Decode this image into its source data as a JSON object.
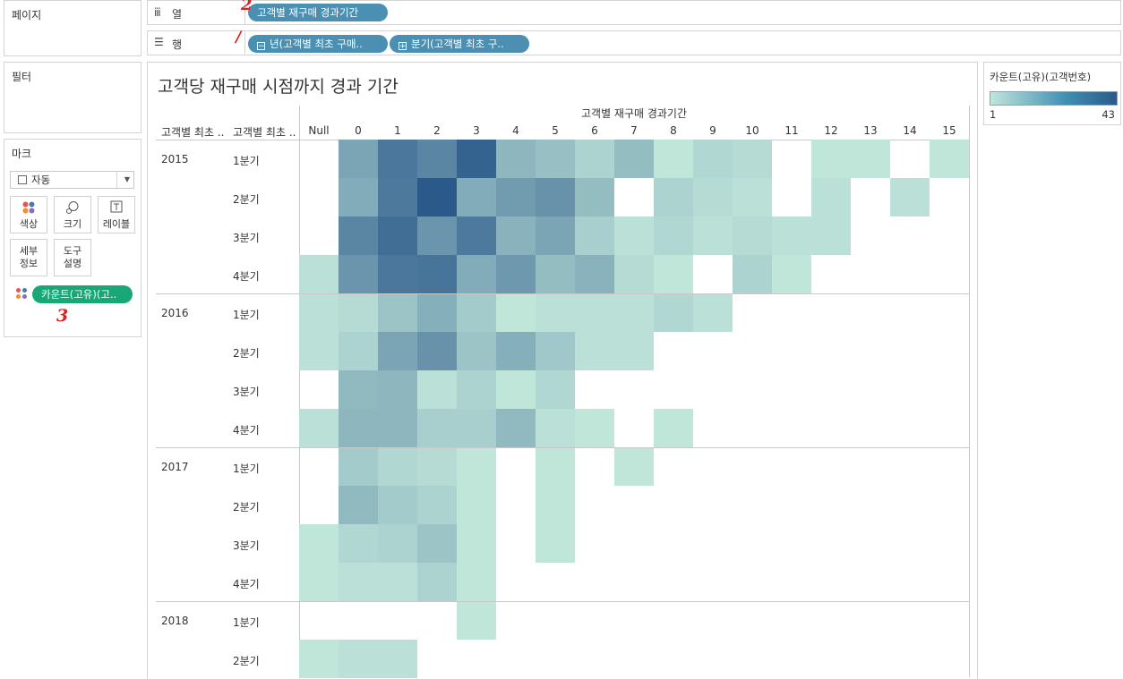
{
  "left_panel": {
    "pages_title": "페이지",
    "filters_title": "필터",
    "marks_title": "마크",
    "mark_type": "자동",
    "buttons": {
      "color": "색상",
      "size": "크기",
      "label": "레이블",
      "detail_1": "세부",
      "detail_2": "정보",
      "tooltip_1": "도구",
      "tooltip_2": "설명"
    },
    "color_pill": "카운트(고유)(고..",
    "annotation_3": "3"
  },
  "shelves": {
    "columns_label": "열",
    "columns_pill": "고객별 재구매 경과기간",
    "annotation_2": "2",
    "rows_label": "행",
    "rows_pill_1": "년(고객별 최초 구매..",
    "rows_pill_2": "분기(고객별 최초 구..",
    "annotation_1": "/"
  },
  "view": {
    "title": "고객당 재구매 시점까지 경과 기간",
    "column_field_header": "고객별 재구매 경과기간",
    "row_header_year": "고객별 최초 ..",
    "row_header_quarter": "고객별 최초 ..",
    "columns": [
      "Null",
      "0",
      "1",
      "2",
      "3",
      "4",
      "5",
      "6",
      "7",
      "8",
      "9",
      "10",
      "11",
      "12",
      "13",
      "14",
      "15"
    ],
    "years": [
      "2015",
      "2016",
      "2017",
      "2018"
    ],
    "rows": [
      {
        "year": "2015",
        "quarter": "1분기"
      },
      {
        "year": "2015",
        "quarter": "2분기"
      },
      {
        "year": "2015",
        "quarter": "3분기"
      },
      {
        "year": "2015",
        "quarter": "4분기"
      },
      {
        "year": "2016",
        "quarter": "1분기"
      },
      {
        "year": "2016",
        "quarter": "2분기"
      },
      {
        "year": "2016",
        "quarter": "3분기"
      },
      {
        "year": "2016",
        "quarter": "4분기"
      },
      {
        "year": "2017",
        "quarter": "1분기"
      },
      {
        "year": "2017",
        "quarter": "2분기"
      },
      {
        "year": "2017",
        "quarter": "3분기"
      },
      {
        "year": "2017",
        "quarter": "4분기"
      },
      {
        "year": "2018",
        "quarter": "1분기"
      },
      {
        "year": "2018",
        "quarter": "2분기"
      }
    ],
    "color_range": [
      "#c0e6da",
      "#2b5a8a"
    ],
    "cells": [
      [
        null,
        18,
        33,
        28,
        40,
        13,
        10,
        5,
        11,
        1,
        4,
        3,
        null,
        1,
        1,
        null,
        1
      ],
      [
        null,
        16,
        32,
        43,
        16,
        21,
        24,
        11,
        null,
        5,
        3,
        2,
        null,
        2,
        null,
        2,
        null
      ],
      [
        null,
        28,
        36,
        23,
        32,
        14,
        18,
        6,
        2,
        4,
        2,
        3,
        2,
        2,
        null,
        null,
        null
      ],
      [
        2,
        23,
        33,
        34,
        16,
        22,
        11,
        14,
        3,
        1,
        null,
        5,
        1,
        null,
        null,
        null,
        null
      ],
      [
        2,
        3,
        9,
        15,
        7,
        1,
        2,
        2,
        2,
        4,
        2,
        null,
        null,
        null,
        null,
        null,
        null
      ],
      [
        2,
        5,
        18,
        24,
        9,
        15,
        8,
        2,
        2,
        null,
        null,
        null,
        null,
        null,
        null,
        null,
        null
      ],
      [
        null,
        12,
        13,
        2,
        5,
        1,
        4,
        null,
        null,
        null,
        null,
        null,
        null,
        null,
        null,
        null,
        null
      ],
      [
        2,
        13,
        13,
        6,
        6,
        12,
        2,
        1,
        null,
        1,
        null,
        null,
        null,
        null,
        null,
        null,
        null
      ],
      [
        null,
        7,
        4,
        3,
        1,
        null,
        1,
        null,
        1,
        null,
        null,
        null,
        null,
        null,
        null,
        null,
        null
      ],
      [
        null,
        12,
        7,
        5,
        1,
        null,
        1,
        null,
        null,
        null,
        null,
        null,
        null,
        null,
        null,
        null,
        null
      ],
      [
        1,
        4,
        5,
        9,
        1,
        null,
        1,
        null,
        null,
        null,
        null,
        null,
        null,
        null,
        null,
        null,
        null
      ],
      [
        1,
        2,
        2,
        5,
        1,
        null,
        null,
        null,
        null,
        null,
        null,
        null,
        null,
        null,
        null,
        null,
        null
      ],
      [
        null,
        null,
        null,
        null,
        1,
        null,
        null,
        null,
        null,
        null,
        null,
        null,
        null,
        null,
        null,
        null,
        null
      ],
      [
        1,
        2,
        2,
        null,
        null,
        null,
        null,
        null,
        null,
        null,
        null,
        null,
        null,
        null,
        null,
        null,
        null
      ]
    ]
  },
  "legend": {
    "title": "카운트(고유)(고객번호)",
    "min": "1",
    "max": "43"
  }
}
